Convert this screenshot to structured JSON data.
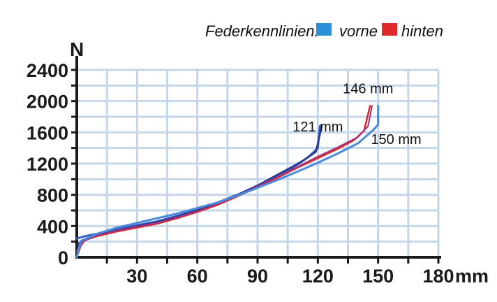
{
  "chart_data": {
    "type": "line",
    "legend_title": "Federkennlinien:",
    "legend_placement": "top-right",
    "xlabel": "mm",
    "ylabel": "N",
    "xlim": [
      0,
      180
    ],
    "ylim": [
      0,
      2400
    ],
    "x_ticks": [
      30,
      60,
      90,
      120,
      150,
      180
    ],
    "y_ticks": [
      0,
      400,
      800,
      1200,
      1600,
      2000,
      2400
    ],
    "x_grid_step": 15,
    "y_grid_step": 200,
    "grid": true,
    "legend": [
      {
        "name": "vorne",
        "color": "#2a8fd6"
      },
      {
        "name": "hinten",
        "color": "#e02a2a"
      }
    ],
    "series": [
      {
        "color": "#3a5fc0",
        "width": 3,
        "points": [
          [
            0,
            240
          ],
          [
            4,
            270
          ],
          [
            10,
            300
          ],
          [
            20,
            360
          ],
          [
            30,
            410
          ],
          [
            40,
            460
          ],
          [
            50,
            530
          ],
          [
            60,
            610
          ],
          [
            70,
            700
          ],
          [
            80,
            800
          ],
          [
            90,
            920
          ],
          [
            100,
            1040
          ],
          [
            105,
            1110
          ],
          [
            110,
            1190
          ],
          [
            115,
            1280
          ],
          [
            118,
            1350
          ],
          [
            120,
            1400
          ],
          [
            121,
            1680
          ]
        ]
      },
      {
        "color": "#283a8c",
        "width": 2.5,
        "points": [
          [
            0,
            0
          ],
          [
            1,
            180
          ],
          [
            4,
            230
          ],
          [
            10,
            280
          ],
          [
            20,
            340
          ],
          [
            30,
            400
          ],
          [
            40,
            450
          ],
          [
            50,
            520
          ],
          [
            60,
            600
          ],
          [
            70,
            690
          ],
          [
            80,
            800
          ],
          [
            90,
            920
          ],
          [
            100,
            1060
          ],
          [
            108,
            1170
          ],
          [
            114,
            1260
          ],
          [
            119,
            1350
          ],
          [
            122,
            1680
          ]
        ]
      },
      {
        "color": "#e02a2a",
        "width": 2.5,
        "points": [
          [
            0,
            0
          ],
          [
            2,
            150
          ],
          [
            4,
            220
          ],
          [
            10,
            270
          ],
          [
            20,
            330
          ],
          [
            30,
            380
          ],
          [
            40,
            430
          ],
          [
            50,
            500
          ],
          [
            60,
            580
          ],
          [
            70,
            670
          ],
          [
            80,
            780
          ],
          [
            90,
            900
          ],
          [
            100,
            1020
          ],
          [
            110,
            1150
          ],
          [
            120,
            1270
          ],
          [
            130,
            1390
          ],
          [
            138,
            1500
          ],
          [
            143,
            1620
          ],
          [
            146,
            1940
          ]
        ]
      },
      {
        "color": "#a03080",
        "width": 2,
        "points": [
          [
            0,
            80
          ],
          [
            3,
            200
          ],
          [
            10,
            280
          ],
          [
            20,
            340
          ],
          [
            30,
            390
          ],
          [
            40,
            440
          ],
          [
            50,
            510
          ],
          [
            60,
            590
          ],
          [
            70,
            680
          ],
          [
            80,
            790
          ],
          [
            90,
            910
          ],
          [
            100,
            1030
          ],
          [
            110,
            1160
          ],
          [
            120,
            1290
          ],
          [
            130,
            1410
          ],
          [
            140,
            1540
          ],
          [
            145,
            1680
          ],
          [
            147,
            1940
          ]
        ]
      },
      {
        "color": "#4a8ad8",
        "width": 3,
        "points": [
          [
            0,
            0
          ],
          [
            2,
            210
          ],
          [
            4,
            230
          ],
          [
            10,
            300
          ],
          [
            20,
            380
          ],
          [
            30,
            440
          ],
          [
            40,
            500
          ],
          [
            50,
            560
          ],
          [
            60,
            630
          ],
          [
            70,
            700
          ],
          [
            80,
            790
          ],
          [
            90,
            890
          ],
          [
            100,
            990
          ],
          [
            110,
            1100
          ],
          [
            120,
            1210
          ],
          [
            130,
            1330
          ],
          [
            140,
            1460
          ],
          [
            148,
            1640
          ],
          [
            150,
            1700
          ],
          [
            150,
            1940
          ]
        ]
      }
    ],
    "annotations": [
      {
        "text": "121 mm",
        "x": 120,
        "y": 1610
      },
      {
        "text": "146 mm",
        "x": 145,
        "y": 2100
      },
      {
        "text": "150 mm",
        "x": 159,
        "y": 1450
      }
    ]
  }
}
